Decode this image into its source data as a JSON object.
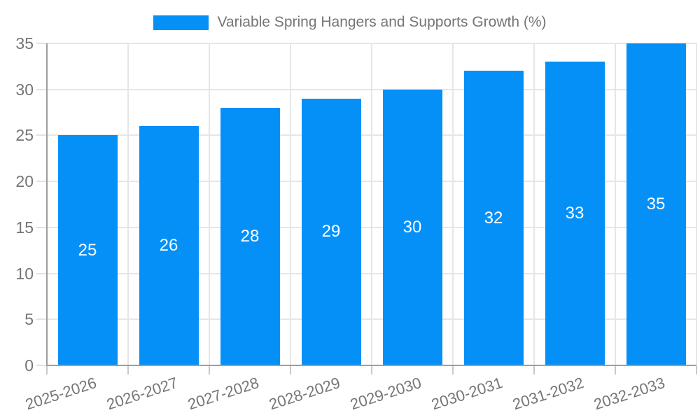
{
  "chart_data": {
    "type": "bar",
    "title": "Variable Spring Hangers and Supports Growth (%)",
    "categories": [
      "2025-2026",
      "2026-2027",
      "2027-2028",
      "2028-2029",
      "2029-2030",
      "2030-2031",
      "2031-2032",
      "2032-2033"
    ],
    "values": [
      25,
      26,
      28,
      29,
      30,
      32,
      33,
      35
    ],
    "xlabel": "",
    "ylabel": "",
    "ylim": [
      0,
      35
    ],
    "yticks": [
      0,
      5,
      10,
      15,
      20,
      25,
      30,
      35
    ],
    "grid": true,
    "legend_position": "top",
    "bar_color": "#0590f8",
    "value_label_color": "#ffffff",
    "text_color": "#757575",
    "axis_color": "#9e9e9e",
    "grid_color": "#e6e6e6"
  }
}
